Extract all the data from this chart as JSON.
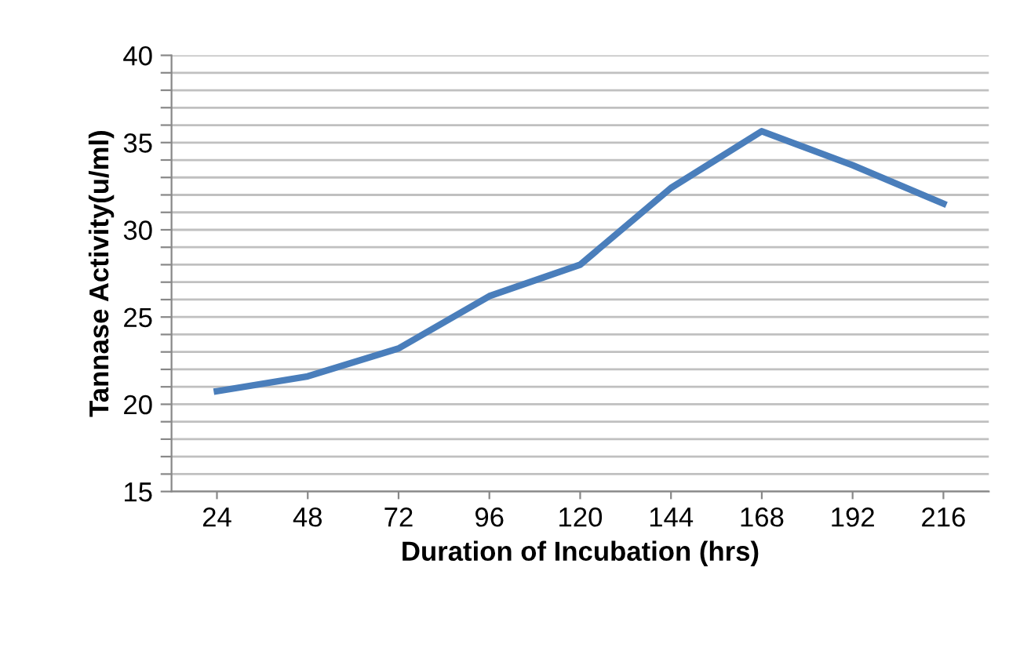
{
  "chart_data": {
    "type": "line",
    "xlabel": "Duration of Incubation (hrs)",
    "ylabel": "Tannase Activity(u/ml)",
    "categories": [
      "24",
      "48",
      "72",
      "96",
      "120",
      "144",
      "168",
      "192",
      "216"
    ],
    "series": [
      {
        "color": "#4a7ebb",
        "values": [
          20.75,
          21.6,
          23.2,
          26.2,
          28.0,
          32.4,
          35.65,
          33.7,
          31.5
        ]
      }
    ],
    "ylim": [
      15,
      40
    ],
    "yticks": [
      15,
      {
        "value": 16,
        "label": null
      },
      {
        "value": 17,
        "label": null
      },
      {
        "value": 18,
        "label": null
      },
      {
        "value": 19,
        "label": null
      },
      20,
      {
        "value": 21,
        "label": null
      },
      {
        "value": 22,
        "label": null
      },
      {
        "value": 23,
        "label": null
      },
      {
        "value": 24,
        "label": null
      },
      25,
      {
        "value": 26,
        "label": null
      },
      {
        "value": 27,
        "label": null
      },
      {
        "value": 28,
        "label": null
      },
      {
        "value": 29,
        "label": null
      },
      30,
      {
        "value": 31,
        "label": null
      },
      {
        "value": 32,
        "label": null
      },
      {
        "value": 33,
        "label": null
      },
      {
        "value": 34,
        "label": null
      },
      35,
      {
        "value": 36,
        "label": null
      },
      {
        "value": 37,
        "label": null
      },
      {
        "value": 38,
        "label": null
      },
      {
        "value": 39,
        "label": null
      },
      40
    ],
    "grid": "y",
    "legend": false,
    "marker": "none",
    "line_style": "solid"
  }
}
